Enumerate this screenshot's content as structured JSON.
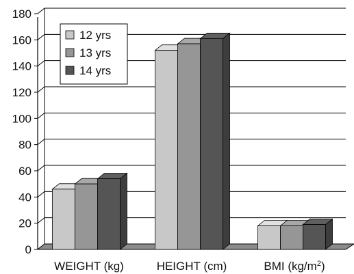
{
  "chart_data": {
    "type": "bar",
    "style": "3d-clustered-column",
    "categories": [
      "WEIGHT (kg)",
      "HEIGHT (cm)",
      "BMI (kg/m2)"
    ],
    "category_label_parts": [
      {
        "main": "WEIGHT (kg)",
        "sup": "",
        "tail": ""
      },
      {
        "main": "HEIGHT (cm)",
        "sup": "",
        "tail": ""
      },
      {
        "main": "BMI (kg/m",
        "sup": "2",
        "tail": ")"
      }
    ],
    "series": [
      {
        "name": "12 yrs",
        "values": [
          46,
          152,
          18
        ],
        "color": "#c8c8c8"
      },
      {
        "name": "13 yrs",
        "values": [
          50,
          157,
          18
        ],
        "color": "#969696"
      },
      {
        "name": "14 yrs",
        "values": [
          54,
          161,
          19
        ],
        "color": "#555555"
      }
    ],
    "ylim": [
      0,
      180
    ],
    "y_ticks": [
      "0",
      "20",
      "40",
      "60",
      "80",
      "100",
      "120",
      "140",
      "160",
      "180"
    ],
    "grid": true,
    "legend_position": "top-left",
    "title": "",
    "xlabel": "",
    "ylabel": ""
  }
}
